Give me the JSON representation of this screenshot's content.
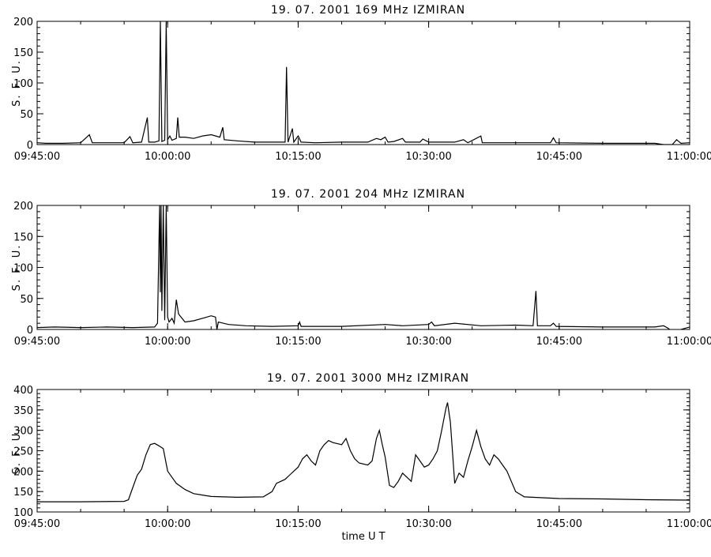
{
  "chart_data": [
    {
      "type": "line",
      "title": "19.  07.  2001    169  MHz    IZMIRAN",
      "ylabel": "S. F. U.",
      "xlabel": "",
      "x_range": [
        "09:45:00",
        "11:00:00"
      ],
      "ylim": [
        0,
        200
      ],
      "y_ticks": [
        0,
        50,
        100,
        150,
        200
      ],
      "x_ticks": [
        "09:45:00",
        "10:00:00",
        "10:15:00",
        "10:30:00",
        "10:45:00",
        "11:00:00"
      ],
      "grid": false,
      "series": [
        {
          "color": "#000000",
          "points": [
            [
              "09:45:00",
              3
            ],
            [
              "09:46:00",
              2
            ],
            [
              "09:48:00",
              2
            ],
            [
              "09:50:00",
              3
            ],
            [
              "09:51:00",
              16
            ],
            [
              "09:51:20",
              3
            ],
            [
              "09:53:00",
              3
            ],
            [
              "09:55:00",
              3
            ],
            [
              "09:55:40",
              13
            ],
            [
              "09:56:00",
              3
            ],
            [
              "09:57:00",
              4
            ],
            [
              "09:57:40",
              44
            ],
            [
              "09:57:50",
              4
            ],
            [
              "09:58:30",
              4
            ],
            [
              "09:59:00",
              6
            ],
            [
              "09:59:10",
              200
            ],
            [
              "09:59:20",
              5
            ],
            [
              "09:59:40",
              7
            ],
            [
              "09:59:50",
              200
            ],
            [
              "10:00:00",
              8
            ],
            [
              "10:00:15",
              14
            ],
            [
              "10:00:30",
              7
            ],
            [
              "10:01:00",
              10
            ],
            [
              "10:01:10",
              44
            ],
            [
              "10:01:20",
              12
            ],
            [
              "10:02:00",
              12
            ],
            [
              "10:03:00",
              10
            ],
            [
              "10:04:00",
              14
            ],
            [
              "10:05:00",
              16
            ],
            [
              "10:06:00",
              12
            ],
            [
              "10:06:20",
              28
            ],
            [
              "10:06:30",
              8
            ],
            [
              "10:08:00",
              6
            ],
            [
              "10:10:00",
              4
            ],
            [
              "10:12:00",
              4
            ],
            [
              "10:13:30",
              4
            ],
            [
              "10:13:40",
              126
            ],
            [
              "10:13:50",
              4
            ],
            [
              "10:14:20",
              26
            ],
            [
              "10:14:30",
              4
            ],
            [
              "10:15:00",
              14
            ],
            [
              "10:15:20",
              4
            ],
            [
              "10:17:00",
              3
            ],
            [
              "10:20:00",
              4
            ],
            [
              "10:23:00",
              4
            ],
            [
              "10:24:00",
              10
            ],
            [
              "10:24:30",
              8
            ],
            [
              "10:25:00",
              12
            ],
            [
              "10:25:20",
              4
            ],
            [
              "10:26:00",
              5
            ],
            [
              "10:27:00",
              10
            ],
            [
              "10:27:20",
              4
            ],
            [
              "10:29:00",
              4
            ],
            [
              "10:29:20",
              9
            ],
            [
              "10:30:00",
              4
            ],
            [
              "10:33:00",
              4
            ],
            [
              "10:34:00",
              8
            ],
            [
              "10:34:30",
              3
            ],
            [
              "10:36:00",
              14
            ],
            [
              "10:36:10",
              3
            ],
            [
              "10:40:00",
              3
            ],
            [
              "10:44:00",
              3
            ],
            [
              "10:44:20",
              11
            ],
            [
              "10:44:40",
              3
            ],
            [
              "10:50:00",
              2
            ],
            [
              "10:56:00",
              2
            ],
            [
              "10:57:00",
              0
            ],
            [
              "10:58:00",
              0
            ],
            [
              "10:58:30",
              8
            ],
            [
              "10:59:00",
              2
            ],
            [
              "11:00:00",
              3
            ]
          ]
        }
      ]
    },
    {
      "type": "line",
      "title": "19.  07.  2001    204  MHz    IZMIRAN",
      "ylabel": "S. F. U.",
      "xlabel": "",
      "x_range": [
        "09:45:00",
        "11:00:00"
      ],
      "ylim": [
        0,
        200
      ],
      "y_ticks": [
        0,
        50,
        100,
        150,
        200
      ],
      "x_ticks": [
        "09:45:00",
        "10:00:00",
        "10:15:00",
        "10:30:00",
        "10:45:00",
        "11:00:00"
      ],
      "grid": false,
      "series": [
        {
          "color": "#000000",
          "points": [
            [
              "09:45:00",
              3
            ],
            [
              "09:47:00",
              4
            ],
            [
              "09:50:00",
              3
            ],
            [
              "09:53:00",
              4
            ],
            [
              "09:56:00",
              3
            ],
            [
              "09:58:30",
              4
            ],
            [
              "09:58:50",
              10
            ],
            [
              "09:59:00",
              140
            ],
            [
              "09:59:05",
              200
            ],
            [
              "09:59:10",
              60
            ],
            [
              "09:59:15",
              200
            ],
            [
              "09:59:20",
              30
            ],
            [
              "09:59:30",
              200
            ],
            [
              "09:59:40",
              15
            ],
            [
              "09:59:50",
              200
            ],
            [
              "10:00:00",
              20
            ],
            [
              "10:00:10",
              12
            ],
            [
              "10:00:30",
              18
            ],
            [
              "10:00:45",
              10
            ],
            [
              "10:01:00",
              48
            ],
            [
              "10:01:15",
              25
            ],
            [
              "10:02:00",
              12
            ],
            [
              "10:03:00",
              14
            ],
            [
              "10:04:00",
              18
            ],
            [
              "10:05:00",
              22
            ],
            [
              "10:05:30",
              20
            ],
            [
              "10:05:40",
              0
            ],
            [
              "10:05:50",
              12
            ],
            [
              "10:07:00",
              8
            ],
            [
              "10:09:00",
              6
            ],
            [
              "10:12:00",
              5
            ],
            [
              "10:15:00",
              6
            ],
            [
              "10:15:10",
              12
            ],
            [
              "10:15:20",
              5
            ],
            [
              "10:20:00",
              5
            ],
            [
              "10:25:00",
              8
            ],
            [
              "10:27:00",
              6
            ],
            [
              "10:30:00",
              8
            ],
            [
              "10:30:20",
              12
            ],
            [
              "10:30:40",
              6
            ],
            [
              "10:33:00",
              10
            ],
            [
              "10:36:00",
              6
            ],
            [
              "10:40:00",
              7
            ],
            [
              "10:42:00",
              6
            ],
            [
              "10:42:20",
              62
            ],
            [
              "10:42:30",
              6
            ],
            [
              "10:44:00",
              6
            ],
            [
              "10:44:20",
              10
            ],
            [
              "10:44:40",
              5
            ],
            [
              "10:50:00",
              4
            ],
            [
              "10:56:00",
              4
            ],
            [
              "10:57:00",
              6
            ],
            [
              "10:57:30",
              2
            ],
            [
              "10:58:00",
              -3
            ],
            [
              "10:59:00",
              0
            ],
            [
              "11:00:00",
              4
            ]
          ]
        }
      ]
    },
    {
      "type": "line",
      "title": "19.  07.  2001    3000  MHz    IZMIRAN",
      "ylabel": "S. F. U.",
      "xlabel": "time   U T",
      "x_range": [
        "09:45:00",
        "11:00:00"
      ],
      "ylim": [
        100,
        400
      ],
      "y_ticks": [
        100,
        150,
        200,
        250,
        300,
        350,
        400
      ],
      "x_ticks": [
        "09:45:00",
        "10:00:00",
        "10:15:00",
        "10:30:00",
        "10:45:00",
        "11:00:00"
      ],
      "grid": false,
      "series": [
        {
          "color": "#000000",
          "points": [
            [
              "09:45:00",
              125
            ],
            [
              "09:50:00",
              125
            ],
            [
              "09:55:00",
              126
            ],
            [
              "09:55:30",
              130
            ],
            [
              "09:56:00",
              160
            ],
            [
              "09:56:30",
              190
            ],
            [
              "09:57:00",
              205
            ],
            [
              "09:57:30",
              240
            ],
            [
              "09:58:00",
              265
            ],
            [
              "09:58:30",
              268
            ],
            [
              "09:59:00",
              262
            ],
            [
              "09:59:30",
              255
            ],
            [
              "10:00:00",
              200
            ],
            [
              "10:01:00",
              170
            ],
            [
              "10:02:00",
              155
            ],
            [
              "10:03:00",
              145
            ],
            [
              "10:05:00",
              138
            ],
            [
              "10:08:00",
              136
            ],
            [
              "10:11:00",
              137
            ],
            [
              "10:12:00",
              150
            ],
            [
              "10:12:30",
              170
            ],
            [
              "10:13:30",
              180
            ],
            [
              "10:14:00",
              190
            ],
            [
              "10:15:00",
              210
            ],
            [
              "10:15:30",
              230
            ],
            [
              "10:16:00",
              240
            ],
            [
              "10:16:30",
              225
            ],
            [
              "10:17:00",
              215
            ],
            [
              "10:17:30",
              250
            ],
            [
              "10:18:00",
              265
            ],
            [
              "10:18:30",
              275
            ],
            [
              "10:19:00",
              270
            ],
            [
              "10:20:00",
              265
            ],
            [
              "10:20:30",
              280
            ],
            [
              "10:21:00",
              250
            ],
            [
              "10:21:30",
              230
            ],
            [
              "10:22:00",
              220
            ],
            [
              "10:23:00",
              215
            ],
            [
              "10:23:30",
              225
            ],
            [
              "10:24:00",
              280
            ],
            [
              "10:24:20",
              300
            ],
            [
              "10:24:40",
              265
            ],
            [
              "10:25:00",
              235
            ],
            [
              "10:25:30",
              165
            ],
            [
              "10:26:00",
              160
            ],
            [
              "10:26:30",
              175
            ],
            [
              "10:27:00",
              195
            ],
            [
              "10:27:30",
              185
            ],
            [
              "10:28:00",
              175
            ],
            [
              "10:28:30",
              240
            ],
            [
              "10:29:00",
              225
            ],
            [
              "10:29:30",
              210
            ],
            [
              "10:30:00",
              215
            ],
            [
              "10:30:30",
              230
            ],
            [
              "10:31:00",
              250
            ],
            [
              "10:31:30",
              300
            ],
            [
              "10:32:00",
              355
            ],
            [
              "10:32:10",
              368
            ],
            [
              "10:32:30",
              320
            ],
            [
              "10:33:00",
              170
            ],
            [
              "10:33:30",
              195
            ],
            [
              "10:34:00",
              185
            ],
            [
              "10:34:30",
              225
            ],
            [
              "10:35:00",
              260
            ],
            [
              "10:35:30",
              300
            ],
            [
              "10:36:00",
              260
            ],
            [
              "10:36:30",
              230
            ],
            [
              "10:37:00",
              215
            ],
            [
              "10:37:30",
              240
            ],
            [
              "10:38:00",
              230
            ],
            [
              "10:38:30",
              215
            ],
            [
              "10:39:00",
              200
            ],
            [
              "10:40:00",
              150
            ],
            [
              "10:41:00",
              137
            ],
            [
              "10:45:00",
              133
            ],
            [
              "10:50:00",
              132
            ],
            [
              "10:55:00",
              130
            ],
            [
              "11:00:00",
              129
            ]
          ]
        }
      ]
    }
  ]
}
